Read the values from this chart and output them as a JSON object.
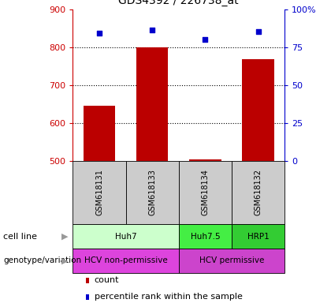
{
  "title": "GDS4392 / 226738_at",
  "samples": [
    "GSM618131",
    "GSM618133",
    "GSM618134",
    "GSM618132"
  ],
  "counts": [
    645,
    800,
    503,
    768
  ],
  "percentiles": [
    84,
    86,
    80,
    85
  ],
  "ylim_left": [
    500,
    900
  ],
  "ylim_right": [
    0,
    100
  ],
  "yticks_left": [
    500,
    600,
    700,
    800,
    900
  ],
  "yticks_right": [
    0,
    25,
    50,
    75,
    100
  ],
  "bar_color": "#bb0000",
  "dot_color": "#0000cc",
  "cell_line_spans": [
    {
      "label": "Huh7",
      "start": 0,
      "end": 2,
      "color": "#ccffcc"
    },
    {
      "label": "Huh7.5",
      "start": 2,
      "end": 3,
      "color": "#44ee44"
    },
    {
      "label": "HRP1",
      "start": 3,
      "end": 4,
      "color": "#33cc33"
    }
  ],
  "genotype_spans": [
    {
      "label": "HCV non-permissive",
      "start": 0,
      "end": 2,
      "color": "#dd44dd"
    },
    {
      "label": "HCV permissive",
      "start": 2,
      "end": 4,
      "color": "#cc44cc"
    }
  ],
  "sample_bg_color": "#cccccc",
  "left_axis_color": "#cc0000",
  "right_axis_color": "#0000cc",
  "title_color": "#000000"
}
